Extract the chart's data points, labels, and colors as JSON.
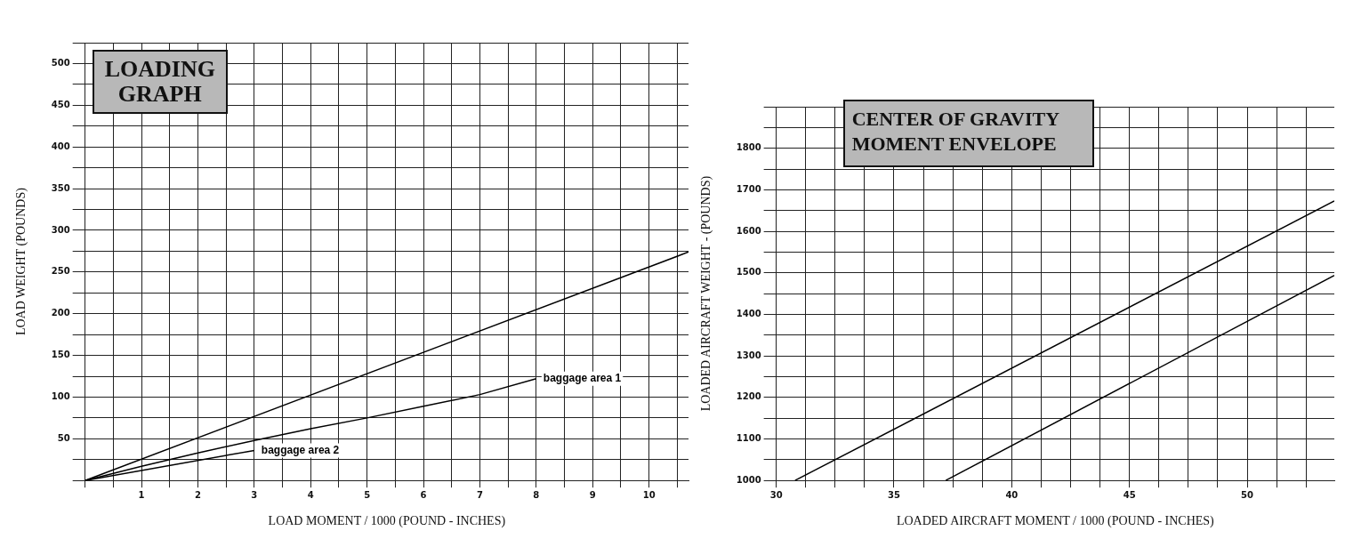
{
  "chart_data": [
    {
      "type": "line",
      "title": "LOADING GRAPH",
      "xlabel": "LOAD MOMENT / 1000 (POUND - INCHES)",
      "ylabel": "LOAD WEIGHT (POUNDS)",
      "xlim": [
        0,
        10.7
      ],
      "ylim": [
        0,
        525
      ],
      "xticks": [
        {
          "value": 0,
          "label": null
        },
        {
          "value": 0.5,
          "label": null
        },
        1,
        {
          "value": 1.5,
          "label": null
        },
        2,
        {
          "value": 2.5,
          "label": null
        },
        3,
        {
          "value": 3.5,
          "label": null
        },
        4,
        {
          "value": 4.5,
          "label": null
        },
        5,
        {
          "value": 5.5,
          "label": null
        },
        6,
        {
          "value": 6.5,
          "label": null
        },
        7,
        {
          "value": 7.5,
          "label": null
        },
        8,
        {
          "value": 8.5,
          "label": null
        },
        9,
        {
          "value": 9.5,
          "label": null
        },
        10,
        {
          "value": 10.5,
          "label": null
        }
      ],
      "yticks": [
        {
          "value": 0,
          "label": null
        },
        {
          "value": 25,
          "label": null
        },
        50,
        {
          "value": 75,
          "label": null
        },
        100,
        {
          "value": 125,
          "label": null
        },
        150,
        {
          "value": 175,
          "label": null
        },
        200,
        {
          "value": 225,
          "label": null
        },
        250,
        {
          "value": 275,
          "label": null
        },
        300,
        {
          "value": 325,
          "label": null
        },
        350,
        {
          "value": 375,
          "label": null
        },
        400,
        {
          "value": 425,
          "label": null
        },
        450,
        {
          "value": 475,
          "label": null
        },
        500,
        {
          "value": 525,
          "label": null
        }
      ],
      "grid": true,
      "legend": false,
      "marker": "none",
      "line_style": "solid",
      "series": [
        {
          "color": "#000000",
          "x": [
            0,
            10.7
          ],
          "values": [
            0,
            274
          ]
        },
        {
          "name": "baggage area 1",
          "color": "#000000",
          "x": [
            0,
            1,
            2,
            3,
            4,
            5,
            6,
            7,
            8
          ],
          "values": [
            0,
            17,
            33,
            48,
            62,
            75,
            89,
            103,
            122
          ]
        },
        {
          "name": "baggage area 2",
          "color": "#000000",
          "x": [
            0,
            3
          ],
          "values": [
            0,
            36
          ]
        }
      ]
    },
    {
      "type": "line",
      "title": "CENTER OF GRAVITY MOMENT ENVELOPE",
      "xlabel": "LOADED AIRCRAFT MOMENT / 1000 (POUND - INCHES)",
      "ylabel": "LOADED AIRCRAFT WEIGHT - (POUNDS)",
      "xlim": [
        30,
        53.7
      ],
      "ylim": [
        1000,
        1900
      ],
      "xticks": [
        30,
        {
          "value": 31.25,
          "label": null
        },
        {
          "value": 32.5,
          "label": null
        },
        {
          "value": 33.75,
          "label": null
        },
        35,
        {
          "value": 36.25,
          "label": null
        },
        {
          "value": 37.5,
          "label": null
        },
        {
          "value": 38.75,
          "label": null
        },
        40,
        {
          "value": 41.25,
          "label": null
        },
        {
          "value": 42.5,
          "label": null
        },
        {
          "value": 43.75,
          "label": null
        },
        45,
        {
          "value": 46.25,
          "label": null
        },
        {
          "value": 47.5,
          "label": null
        },
        {
          "value": 48.75,
          "label": null
        },
        50,
        {
          "value": 51.25,
          "label": null
        },
        {
          "value": 52.5,
          "label": null
        }
      ],
      "yticks": [
        1000,
        {
          "value": 1050,
          "label": null
        },
        1100,
        {
          "value": 1150,
          "label": null
        },
        1200,
        {
          "value": 1250,
          "label": null
        },
        1300,
        {
          "value": 1350,
          "label": null
        },
        1400,
        {
          "value": 1450,
          "label": null
        },
        1500,
        {
          "value": 1550,
          "label": null
        },
        1600,
        {
          "value": 1650,
          "label": null
        },
        1700,
        {
          "value": 1750,
          "label": null
        },
        1800,
        {
          "value": 1850,
          "label": null
        },
        {
          "value": 1900,
          "label": null
        }
      ],
      "grid": true,
      "legend": false,
      "marker": "none",
      "line_style": "solid",
      "series": [
        {
          "color": "#000000",
          "x": [
            30.8,
            53.7
          ],
          "values": [
            1000,
            1673
          ]
        },
        {
          "color": "#000000",
          "x": [
            37.2,
            53.7
          ],
          "values": [
            1000,
            1494
          ]
        }
      ]
    }
  ]
}
